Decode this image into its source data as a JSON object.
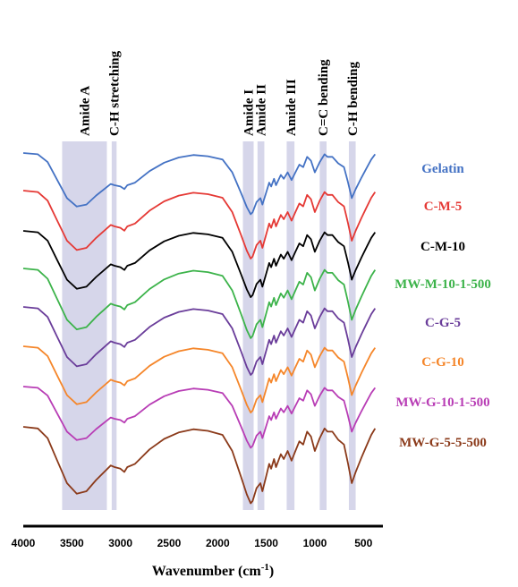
{
  "chart_data": {
    "type": "line",
    "xlabel": "Wavenumber (cm",
    "xlabel_sup": "-1",
    "xlim": [
      4000,
      300
    ],
    "x_ticks": [
      "4000",
      "3500",
      "3000",
      "2500",
      "2000",
      "1500",
      "1000",
      "500"
    ],
    "x_tick_values": [
      4000,
      3500,
      3000,
      2500,
      2000,
      1500,
      1000,
      500
    ],
    "axis_color": "#000000",
    "band_color": "#d6d6ea",
    "bands": [
      {
        "label": "Amide A",
        "from": 3600,
        "to": 3140
      },
      {
        "label": "C-H stretching",
        "from": 3090,
        "to": 3040
      },
      {
        "label": "Amide I",
        "from": 1740,
        "to": 1630
      },
      {
        "label": "Amide II",
        "from": 1590,
        "to": 1520
      },
      {
        "label": "Amide III",
        "from": 1290,
        "to": 1210
      },
      {
        "label": "C=C bending",
        "from": 950,
        "to": 880
      },
      {
        "label": "C-H bending",
        "from": 650,
        "to": 580
      }
    ],
    "series": [
      {
        "name": "Gelatin",
        "color": "#4472c4"
      },
      {
        "name": "C-M-5",
        "color": "#e53935"
      },
      {
        "name": "C-M-10",
        "color": "#000000"
      },
      {
        "name": "MW-M-10-1-500",
        "color": "#3cb34a"
      },
      {
        "name": "C-G-5",
        "color": "#6a3d9a"
      },
      {
        "name": "C-G-10",
        "color": "#f5862a"
      },
      {
        "name": "MW-G-10-1-500",
        "color": "#b83db5"
      },
      {
        "name": "MW-G-5-5-500",
        "color": "#8b3a1a"
      }
    ],
    "shape": [
      [
        4000,
        0.0
      ],
      [
        3850,
        0.02
      ],
      [
        3750,
        0.14
      ],
      [
        3650,
        0.42
      ],
      [
        3550,
        0.7
      ],
      [
        3450,
        0.83
      ],
      [
        3350,
        0.8
      ],
      [
        3250,
        0.66
      ],
      [
        3100,
        0.48
      ],
      [
        3060,
        0.5
      ],
      [
        3000,
        0.52
      ],
      [
        2960,
        0.56
      ],
      [
        2930,
        0.5
      ],
      [
        2850,
        0.46
      ],
      [
        2700,
        0.28
      ],
      [
        2550,
        0.15
      ],
      [
        2400,
        0.07
      ],
      [
        2250,
        0.03
      ],
      [
        2100,
        0.05
      ],
      [
        1950,
        0.1
      ],
      [
        1850,
        0.3
      ],
      [
        1760,
        0.62
      ],
      [
        1700,
        0.84
      ],
      [
        1660,
        0.95
      ],
      [
        1640,
        0.92
      ],
      [
        1600,
        0.76
      ],
      [
        1560,
        0.7
      ],
      [
        1540,
        0.8
      ],
      [
        1510,
        0.66
      ],
      [
        1470,
        0.46
      ],
      [
        1450,
        0.52
      ],
      [
        1420,
        0.4
      ],
      [
        1400,
        0.5
      ],
      [
        1350,
        0.34
      ],
      [
        1320,
        0.4
      ],
      [
        1280,
        0.3
      ],
      [
        1240,
        0.42
      ],
      [
        1200,
        0.3
      ],
      [
        1160,
        0.18
      ],
      [
        1120,
        0.22
      ],
      [
        1080,
        0.06
      ],
      [
        1040,
        0.12
      ],
      [
        1000,
        0.3
      ],
      [
        950,
        0.14
      ],
      [
        900,
        0.02
      ],
      [
        870,
        0.06
      ],
      [
        820,
        0.06
      ],
      [
        760,
        0.16
      ],
      [
        700,
        0.22
      ],
      [
        660,
        0.45
      ],
      [
        620,
        0.7
      ],
      [
        580,
        0.56
      ],
      [
        520,
        0.38
      ],
      [
        470,
        0.24
      ],
      [
        420,
        0.1
      ],
      [
        380,
        0.02
      ]
    ]
  }
}
